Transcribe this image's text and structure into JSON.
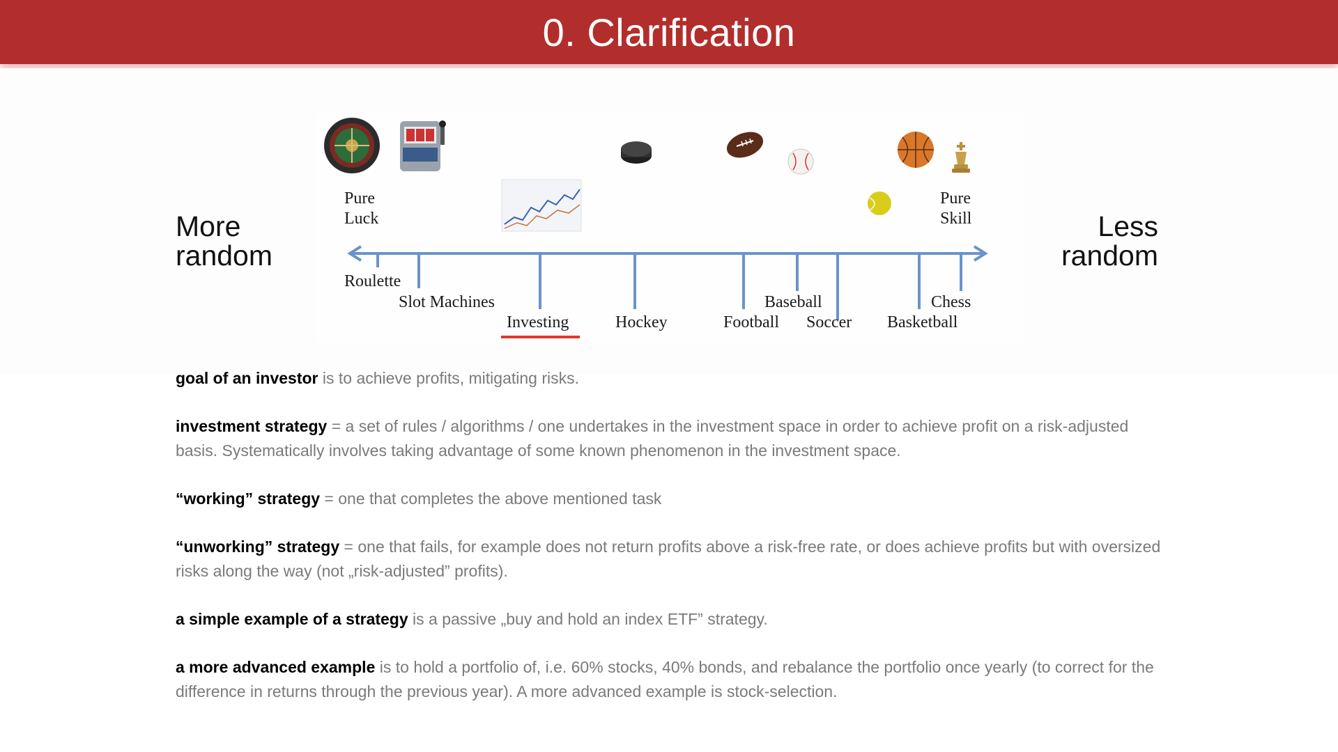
{
  "slide": {
    "title": "0. Clarification"
  },
  "side_labels": {
    "left": [
      "More",
      "random"
    ],
    "right": [
      "Less",
      "random"
    ]
  },
  "diagram": {
    "ends": {
      "left": [
        "Pure",
        "Luck"
      ],
      "right": [
        "Pure",
        "Skill"
      ]
    },
    "activities": [
      "Roulette",
      "Slot Machines",
      "Investing",
      "Hockey",
      "Football",
      "Baseball",
      "Soccer",
      "Basketball",
      "Chess"
    ],
    "icons": [
      "roulette-wheel-icon",
      "slot-machine-icon",
      "stock-chart-icon",
      "hockey-puck-icon",
      "football-icon",
      "baseball-icon",
      "tennis-ball-icon",
      "basketball-icon",
      "chess-king-icon"
    ],
    "colors": {
      "axis": "#6b93c9",
      "highlight": "#e0392b"
    }
  },
  "definitions": [
    {
      "term": "goal of an investor",
      "text": " is to achieve profits, mitigating risks."
    },
    {
      "term": "investment strategy",
      "text": " = a set of rules / algorithms / one undertakes in the investment space in order to achieve profit on a risk-adjusted basis. Systematically involves taking advantage of some known phenomenon in the investment space."
    },
    {
      "term": "“working” strategy",
      "text": " = one that completes the above mentioned task"
    },
    {
      "term": "“unworking” strategy",
      "text": " = one that fails, for example does not return profits above a risk-free rate, or does achieve profits but with oversized risks along the way (not „risk-adjusted” profits)."
    },
    {
      "term": "a simple example of a strategy",
      "text": " is a passive „buy and hold an index ETF” strategy."
    },
    {
      "term": "a more advanced example",
      "text": " is to hold a portfolio of, i.e. 60% stocks, 40% bonds, and rebalance the portfolio once yearly (to correct for the difference in returns through the previous year). A more advanced example is stock-selection."
    }
  ]
}
